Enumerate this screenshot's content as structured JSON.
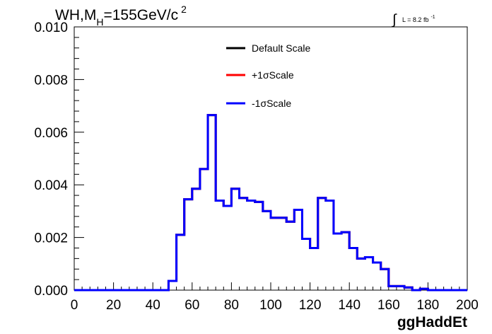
{
  "chart_data": {
    "type": "line",
    "title": {
      "main": "WH,M",
      "subscript": "H",
      "rest": "=155GeV/c",
      "superscript": "2"
    },
    "lumi": {
      "integral": "∫",
      "text": "L = 8.2 fb",
      "superscript": "-1"
    },
    "xlabel": "ggHaddEt",
    "ylabel": "",
    "xlim": [
      0,
      200
    ],
    "ylim": [
      0,
      0.01
    ],
    "x_ticks": [
      "0",
      "20",
      "40",
      "60",
      "80",
      "100",
      "120",
      "140",
      "160",
      "180",
      "200"
    ],
    "y_ticks": [
      "0.000",
      "0.002",
      "0.004",
      "0.006",
      "0.008",
      "0.010"
    ],
    "bin_width": 4,
    "bin_edges_start": 0,
    "series": [
      {
        "name": "Default Scale",
        "color": "#000000"
      },
      {
        "name": "+1σScale",
        "color": "#ff0000"
      },
      {
        "name": "-1σScale",
        "color": "#0000ff"
      }
    ],
    "values": [
      0,
      0,
      0,
      0,
      0,
      0,
      0,
      0,
      0,
      0,
      0,
      0,
      0.00035,
      0.0021,
      0.00345,
      0.00385,
      0.0046,
      0.00665,
      0.0034,
      0.0032,
      0.00385,
      0.0035,
      0.0034,
      0.00335,
      0.003,
      0.00275,
      0.00275,
      0.0026,
      0.00305,
      0.00195,
      0.0016,
      0.0035,
      0.0034,
      0.00215,
      0.0022,
      0.0016,
      0.0012,
      0.00125,
      0.00105,
      0.0008,
      0.00015,
      0.00015,
      0.0001,
      0,
      5e-05,
      0,
      0,
      0,
      0,
      0
    ]
  }
}
